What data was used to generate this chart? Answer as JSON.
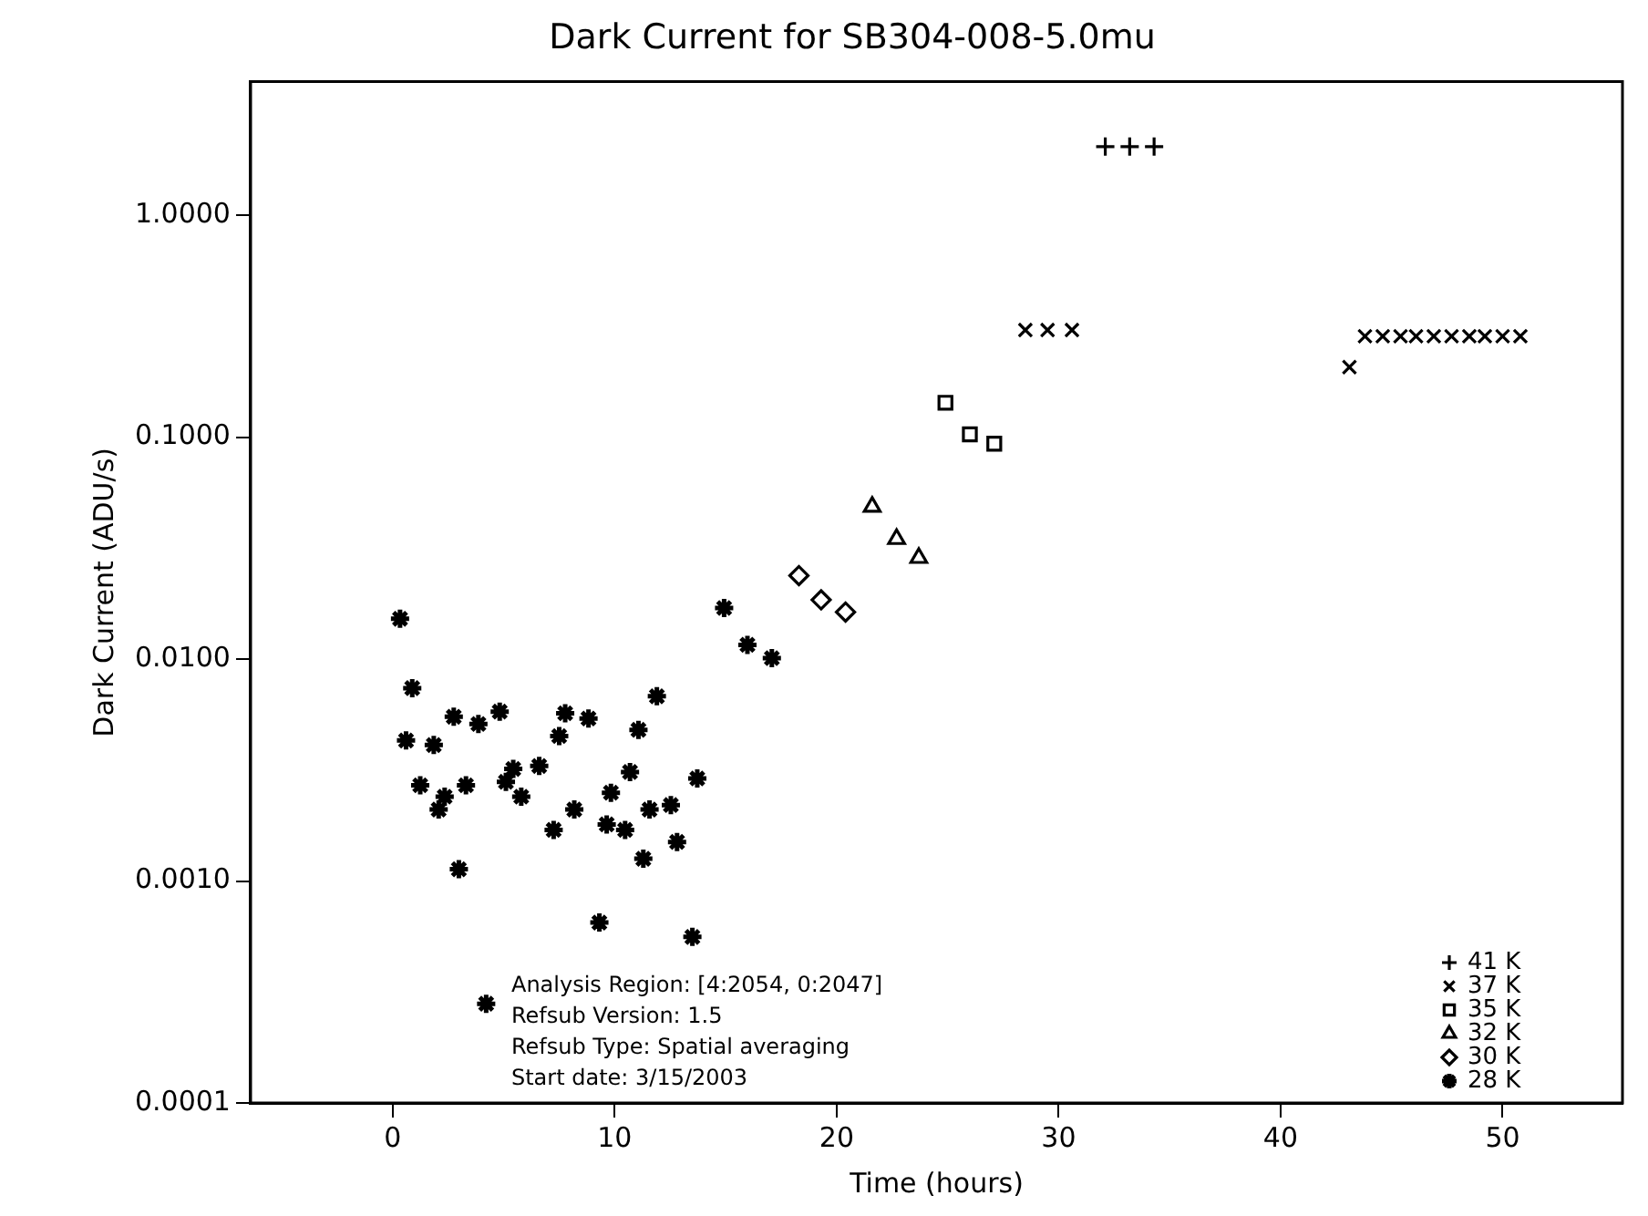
{
  "chart_data": {
    "type": "scatter",
    "title": "Dark Current for SB304-008-5.0mu",
    "xlabel": "Time (hours)",
    "ylabel": "Dark Current (ADU/s)",
    "xlim": [
      -6.4,
      55.4
    ],
    "xticks": [
      0,
      10,
      20,
      30,
      40,
      50
    ],
    "ylim": [
      0.0001,
      4
    ],
    "yticks": [
      {
        "value": 1,
        "label": "1.0000"
      },
      {
        "value": 0.1,
        "label": "0.1000"
      },
      {
        "value": 0.01,
        "label": "0.0100"
      },
      {
        "value": 0.001,
        "label": "0.0010"
      },
      {
        "value": 0.0001,
        "label": "0.0001"
      }
    ],
    "log": "y",
    "grid": false,
    "legend": "bottom right",
    "annotations": [
      "Analysis Region: [4:2054, 0:2047]",
      "Refsub Version: 1.5",
      "Refsub Type: Spatial averaging",
      "Start date: 3/15/2003"
    ],
    "series": [
      {
        "name": "41 K",
        "color": "#000000",
        "marker": "plus",
        "x": [
          32.1,
          33.2,
          34.3
        ],
        "values": [
          2.04,
          2.04,
          2.04
        ]
      },
      {
        "name": "37 K",
        "color": "#000000",
        "marker": "cross",
        "x": [
          28.5,
          29.5,
          30.6,
          43.1,
          43.8,
          44.6,
          45.4,
          46.1,
          46.9,
          47.7,
          48.5,
          49.2,
          50.0,
          50.8
        ],
        "values": [
          0.304,
          0.304,
          0.304,
          0.207,
          0.285,
          0.285,
          0.285,
          0.285,
          0.285,
          0.285,
          0.285,
          0.285,
          0.285,
          0.285
        ]
      },
      {
        "name": "35 K",
        "color": "#000000",
        "marker": "square",
        "x": [
          24.9,
          26.0,
          27.1
        ],
        "values": [
          0.143,
          0.103,
          0.0935
        ]
      },
      {
        "name": "32 K",
        "color": "#000000",
        "marker": "triangle",
        "x": [
          21.6,
          22.7,
          23.7
        ],
        "values": [
          0.0486,
          0.0348,
          0.0286
        ]
      },
      {
        "name": "30 K",
        "color": "#000000",
        "marker": "diamond",
        "x": [
          18.3,
          19.3,
          20.4
        ],
        "values": [
          0.0238,
          0.0185,
          0.0163
        ]
      },
      {
        "name": "28 K",
        "color": "#000000",
        "x": [
          0.33,
          0.88,
          0.6,
          1.24,
          1.85,
          2.75,
          2.07,
          2.34,
          3.3,
          2.98,
          3.86,
          4.82,
          5.1,
          5.43,
          5.79,
          6.6,
          7.25,
          7.5,
          7.77,
          8.82,
          8.18,
          9.31,
          9.64,
          9.83,
          10.47,
          10.69,
          11.07,
          11.29,
          11.57,
          11.9,
          12.53,
          12.81,
          13.72,
          13.5,
          4.21,
          14.93,
          15.98,
          17.08
        ],
        "values": [
          0.0152,
          0.0074,
          0.0043,
          0.0027,
          0.0041,
          0.0055,
          0.0021,
          0.0024,
          0.0027,
          0.00113,
          0.0051,
          0.0058,
          0.0028,
          0.0032,
          0.0024,
          0.0033,
          0.0017,
          0.0045,
          0.0057,
          0.0054,
          0.0021,
          0.00065,
          0.0018,
          0.0025,
          0.0017,
          0.0031,
          0.0048,
          0.00126,
          0.0021,
          0.0068,
          0.0022,
          0.0015,
          0.0029,
          0.00056,
          0.00028,
          0.017,
          0.0116,
          0.0101
        ]
      }
    ]
  }
}
